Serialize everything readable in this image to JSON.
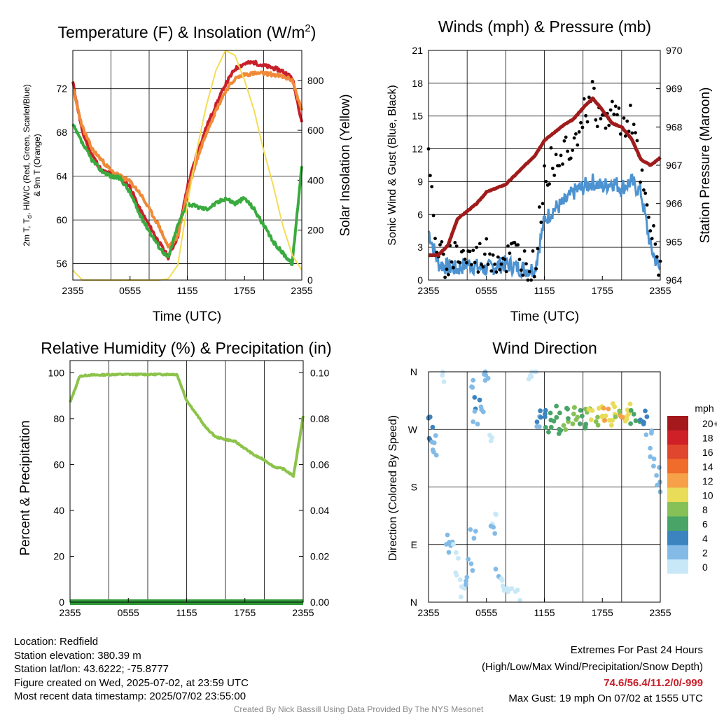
{
  "panels": {
    "temperature": {
      "title": "Temperature (F) & Insolation (W/m",
      "title_sup": "2",
      "title_close": ")",
      "ylabel_left_1": "2m T, T",
      "ylabel_left_sub": "d",
      "ylabel_left_2": ", HI/WC (Red, Green, Scarlet/Blue)",
      "ylabel_left_3": "& 9m T (Orange)",
      "ylabel_right": "Solar Insolation (Yellow)",
      "xlabel": "Time (UTC)",
      "left_ticks": [
        "56",
        "60",
        "64",
        "68",
        "72"
      ],
      "right_ticks": [
        "0",
        "200",
        "400",
        "600",
        "800"
      ],
      "x_ticks": [
        "2355",
        "0555",
        "1155",
        "1755",
        "2355"
      ]
    },
    "winds": {
      "title": "Winds (mph) & Pressure (mb)",
      "ylabel_left": "Sonic Wind & Gust (Blue, Black)",
      "ylabel_right": "Station Pressure (Maroon)",
      "xlabel": "Time (UTC)",
      "left_ticks": [
        "0",
        "3",
        "6",
        "9",
        "12",
        "15",
        "18",
        "21"
      ],
      "right_ticks": [
        "964",
        "965",
        "966",
        "967",
        "968",
        "969",
        "970"
      ],
      "x_ticks": [
        "2355",
        "0555",
        "1155",
        "1755",
        "2355"
      ]
    },
    "humidity": {
      "title": "Relative Humidity (%) & Precipitation (in)",
      "ylabel_left": "Percent & Precipitation",
      "left_ticks": [
        "0",
        "20",
        "40",
        "60",
        "80",
        "100"
      ],
      "right_ticks": [
        "0.00",
        "0.02",
        "0.04",
        "0.06",
        "0.08",
        "0.10"
      ],
      "x_ticks": [
        "2355",
        "0555",
        "1155",
        "1755",
        "2355"
      ]
    },
    "wind_direction": {
      "title": "Wind Direction",
      "ylabel_left": "Direction (Colored By Speed)",
      "y_ticks": [
        "N",
        "E",
        "S",
        "W",
        "N"
      ],
      "x_ticks": [
        "2355",
        "0555",
        "1155",
        "1755",
        "2355"
      ],
      "legend_title": "mph",
      "legend_labels": [
        "20+",
        "18",
        "16",
        "14",
        "12",
        "10",
        "8",
        "6",
        "4",
        "2",
        "0"
      ],
      "legend_colors": [
        "#a5191d",
        "#cf2027",
        "#e0462d",
        "#ef6c2b",
        "#f6a04a",
        "#e8dc58",
        "#86c157",
        "#48a567",
        "#3b84c0",
        "#83bbe6",
        "#c8e8f8"
      ]
    }
  },
  "footer": {
    "location": "Location: Redfield",
    "elevation": "Station elevation: 380.39 m",
    "latlon": "Station lat/lon: 43.6222; -75.8777",
    "created": "Figure created on Wed, 2025-07-02, at 23:59 UTC",
    "recent": "Most recent data timestamp: 2025/07/02 23:55:00",
    "extremes_title": "Extremes For Past 24 Hours",
    "extremes_sub": "(High/Low/Max Wind/Precipitation/Snow Depth)",
    "extremes_values": "74.6/56.4/11.2/0/-999",
    "max_gust": "Max Gust: 19 mph On 07/02 at 1555 UTC",
    "credit": "Created By Nick Bassill Using Data Provided By The NYS Mesonet"
  },
  "colors": {
    "temp_red": "#c8202a",
    "temp_orange": "#f08a38",
    "dewpoint_green": "#3aab3f",
    "solar_yellow": "#f5dc55",
    "wind_blue": "#4d93d1",
    "gust_black": "#000000",
    "pressure_maroon": "#a01c1c",
    "rh_green": "#8cc34a",
    "precip_green": "#2f9a3a",
    "extremes_red": "#c8202a",
    "credit_gray": "#888888"
  },
  "chart_data": [
    {
      "type": "line",
      "title": "Temperature (F) & Insolation (W/m2)",
      "xlabel": "Time (UTC)",
      "ylabel": "2m T, Td, HI/WC (Red, Green, Scarlet/Blue) & 9m T (Orange)",
      "y2label": "Solar Insolation (Yellow)",
      "x_hours": [
        0,
        1,
        2,
        3,
        4,
        5,
        6,
        7,
        8,
        9,
        10,
        11,
        12,
        13,
        14,
        15,
        16,
        17,
        18,
        19,
        20,
        21,
        22,
        23,
        24
      ],
      "ylim": [
        54.5,
        75.5
      ],
      "y2lim": [
        0,
        920
      ],
      "series": [
        {
          "name": "2m T",
          "color": "#c8202a",
          "axis": "left",
          "values": [
            72.6,
            68.0,
            66.0,
            64.5,
            64.2,
            64.0,
            63.0,
            61.0,
            59.5,
            58.0,
            56.6,
            58.5,
            63.0,
            66.0,
            68.5,
            70.5,
            72.4,
            73.8,
            74.3,
            74.4,
            74.1,
            73.9,
            73.6,
            73.0,
            69.0
          ]
        },
        {
          "name": "9m T",
          "color": "#f08a38",
          "axis": "left",
          "values": [
            72.0,
            68.5,
            66.5,
            65.5,
            64.5,
            64.0,
            63.5,
            62.5,
            61.0,
            59.5,
            57.5,
            58.5,
            62.5,
            65.5,
            68.0,
            70.0,
            71.8,
            72.9,
            73.3,
            73.4,
            73.4,
            73.3,
            73.1,
            72.8,
            70.0
          ]
        },
        {
          "name": "Td",
          "color": "#3aab3f",
          "axis": "left",
          "values": [
            68.7,
            67.0,
            65.5,
            64.5,
            64.0,
            63.8,
            62.5,
            60.5,
            59.0,
            57.6,
            56.5,
            59.5,
            61.5,
            61.2,
            61.0,
            61.5,
            62.0,
            61.5,
            62.0,
            61.0,
            59.5,
            58.0,
            57.0,
            56.0,
            65.0
          ]
        },
        {
          "name": "Solar Insolation",
          "color": "#f5dc55",
          "axis": "right",
          "values": [
            40,
            0,
            0,
            0,
            0,
            0,
            0,
            0,
            0,
            0,
            5,
            60,
            300,
            520,
            700,
            840,
            920,
            900,
            800,
            680,
            520,
            380,
            220,
            100,
            40
          ]
        }
      ]
    },
    {
      "type": "line",
      "title": "Winds (mph) & Pressure (mb)",
      "xlabel": "Time (UTC)",
      "ylabel": "Sonic Wind & Gust (Blue, Black)",
      "y2label": "Station Pressure (Maroon)",
      "x_hours": [
        0,
        1,
        2,
        3,
        4,
        5,
        6,
        7,
        8,
        9,
        10,
        11,
        12,
        13,
        14,
        15,
        16,
        17,
        18,
        19,
        20,
        21,
        22,
        23,
        24
      ],
      "ylim": [
        0,
        21
      ],
      "y2lim": [
        964,
        970
      ],
      "series": [
        {
          "name": "Sonic Wind",
          "color": "#4d93d1",
          "axis": "left",
          "values": [
            4.5,
            1.5,
            1.2,
            1.0,
            1.5,
            1.2,
            1.0,
            1.3,
            1.5,
            1.2,
            1.0,
            1.0,
            5.5,
            6.5,
            7.0,
            8.0,
            8.5,
            9.0,
            8.5,
            9.0,
            8.5,
            9.0,
            8.0,
            3.0,
            0.8
          ]
        },
        {
          "name": "Gust",
          "color": "#000000",
          "axis": "left",
          "values": [
            10.5,
            2.0,
            1.8,
            2.5,
            2.0,
            1.8,
            2.5,
            2.0,
            1.8,
            2.5,
            1.5,
            1.0,
            9.5,
            11.0,
            12.0,
            13.0,
            15.0,
            17.0,
            14.0,
            15.5,
            14.5,
            15.0,
            9.0,
            4.5,
            1.0
          ]
        },
        {
          "name": "Station Pressure",
          "color": "#a01c1c",
          "axis": "right",
          "values": [
            964.65,
            964.65,
            964.9,
            965.6,
            965.8,
            966.0,
            966.3,
            966.4,
            966.5,
            966.75,
            967.0,
            967.25,
            967.65,
            967.85,
            968.05,
            968.2,
            968.5,
            968.75,
            968.45,
            968.1,
            968.0,
            967.7,
            967.15,
            967.0,
            967.2
          ]
        }
      ]
    },
    {
      "type": "line",
      "title": "Relative Humidity (%) & Precipitation (in)",
      "ylabel": "Percent & Precipitation",
      "x_hours": [
        0,
        1,
        2,
        3,
        4,
        5,
        6,
        7,
        8,
        9,
        10,
        11,
        12,
        13,
        14,
        15,
        16,
        17,
        18,
        19,
        20,
        21,
        22,
        23,
        24
      ],
      "ylim": [
        0,
        100
      ],
      "y2lim": [
        0,
        0.1
      ],
      "series": [
        {
          "name": "Relative Humidity",
          "color": "#8cc34a",
          "axis": "left",
          "values": [
            87,
            98.5,
            99,
            99,
            99.2,
            99.3,
            99.3,
            99.3,
            99.3,
            99.3,
            99.3,
            99.3,
            88,
            82,
            76,
            72,
            71,
            70,
            67,
            64,
            62,
            59,
            58,
            55,
            81
          ]
        },
        {
          "name": "Precipitation",
          "color": "#2f9a3a",
          "axis": "right",
          "values": [
            0,
            0,
            0,
            0,
            0,
            0,
            0,
            0,
            0,
            0,
            0,
            0,
            0,
            0,
            0,
            0,
            0,
            0,
            0,
            0,
            0,
            0,
            0,
            0,
            0
          ]
        }
      ]
    },
    {
      "type": "scatter",
      "title": "Wind Direction",
      "ylabel": "Direction (Colored By Speed)",
      "ylim": [
        0,
        360
      ],
      "color_scale_mph": [
        0,
        2,
        4,
        6,
        8,
        10,
        12,
        14,
        16,
        18,
        20
      ],
      "points_hour_dir_speed": [
        [
          0.1,
          278,
          3
        ],
        [
          0.3,
          265,
          3
        ],
        [
          0.5,
          250,
          2
        ],
        [
          0.6,
          240,
          1
        ],
        [
          1.5,
          355,
          0
        ],
        [
          2.1,
          95,
          2
        ],
        [
          2.4,
          88,
          1
        ],
        [
          2.8,
          80,
          0
        ],
        [
          3.1,
          40,
          0
        ],
        [
          3.6,
          20,
          0
        ],
        [
          3.9,
          28,
          1
        ],
        [
          4.3,
          60,
          1
        ],
        [
          4.6,
          105,
          2
        ],
        [
          4.4,
          338,
          1
        ],
        [
          5.0,
          310,
          3
        ],
        [
          5.4,
          295,
          2
        ],
        [
          4.8,
          290,
          1
        ],
        [
          5.6,
          350,
          1
        ],
        [
          6.0,
          355,
          1
        ],
        [
          6.6,
          260,
          0
        ],
        [
          6.8,
          128,
          0
        ],
        [
          6.7,
          108,
          1
        ],
        [
          7.2,
          40,
          1
        ],
        [
          7.6,
          30,
          0
        ],
        [
          8.0,
          25,
          0
        ],
        [
          8.5,
          20,
          0
        ],
        [
          9.3,
          15,
          0
        ],
        [
          10.5,
          345,
          0
        ],
        [
          10.9,
          360,
          0
        ],
        [
          11.2,
          280,
          2
        ],
        [
          11.4,
          290,
          3
        ],
        [
          12.0,
          292,
          4
        ],
        [
          12.4,
          275,
          5
        ],
        [
          12.9,
          285,
          6
        ],
        [
          13.3,
          296,
          5
        ],
        [
          13.8,
          270,
          6
        ],
        [
          14.2,
          280,
          7
        ],
        [
          14.6,
          292,
          6
        ],
        [
          15.0,
          285,
          8
        ],
        [
          15.3,
          300,
          7
        ],
        [
          15.7,
          290,
          6
        ],
        [
          16.1,
          280,
          5
        ],
        [
          16.5,
          292,
          7
        ],
        [
          16.9,
          295,
          9
        ],
        [
          17.3,
          288,
          8
        ],
        [
          17.7,
          300,
          10
        ],
        [
          18.1,
          290,
          9
        ],
        [
          18.4,
          296,
          11
        ],
        [
          18.8,
          285,
          10
        ],
        [
          19.2,
          300,
          9
        ],
        [
          19.6,
          290,
          8
        ],
        [
          20.0,
          298,
          11
        ],
        [
          20.4,
          292,
          10
        ],
        [
          20.8,
          300,
          9
        ],
        [
          21.2,
          290,
          6
        ],
        [
          21.6,
          285,
          5
        ],
        [
          22.0,
          276,
          4
        ],
        [
          22.4,
          290,
          3
        ],
        [
          22.8,
          260,
          2
        ],
        [
          23.2,
          235,
          1
        ],
        [
          23.6,
          210,
          1
        ],
        [
          23.9,
          180,
          1
        ]
      ]
    }
  ]
}
